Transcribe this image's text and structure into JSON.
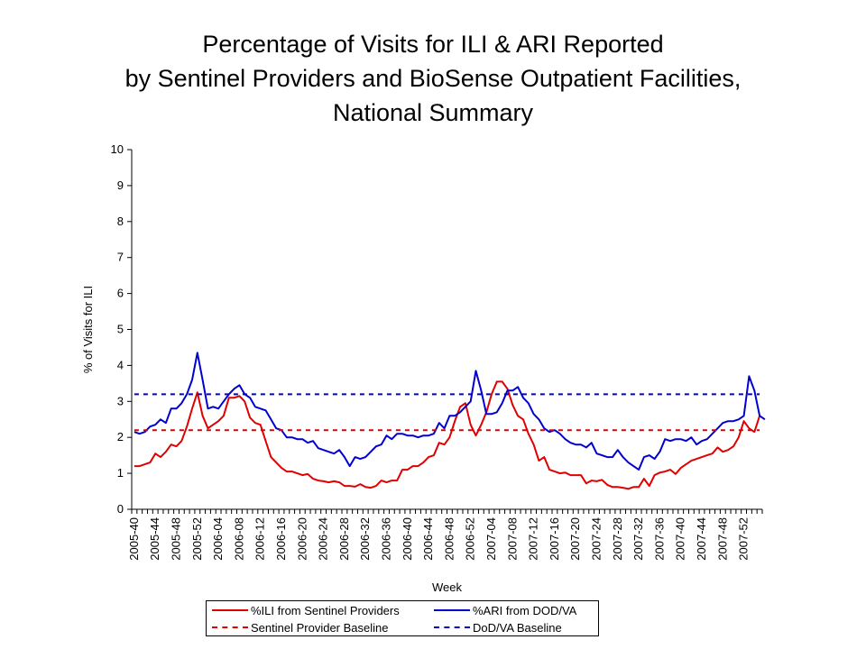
{
  "title_lines": [
    "Percentage of Visits for ILI & ARI Reported",
    "by Sentinel Providers and BioSense Outpatient Facilities,",
    "National Summary"
  ],
  "chart_data": {
    "type": "line",
    "title": "Percentage of Visits for ILI & ARI Reported by Sentinel Providers and BioSense Outpatient Facilities, National Summary",
    "xlabel": "Week",
    "ylabel": "% of Visits for ILI",
    "ylim": [
      0,
      10
    ],
    "yticks": [
      0,
      1,
      2,
      3,
      4,
      5,
      6,
      7,
      8,
      9,
      10
    ],
    "grid": false,
    "legend_position": "bottom",
    "x_tick_labels": [
      "2005-40",
      "2005-44",
      "2005-48",
      "2005-52",
      "2006-04",
      "2006-08",
      "2006-12",
      "2006-16",
      "2006-20",
      "2006-24",
      "2006-28",
      "2006-32",
      "2006-36",
      "2006-40",
      "2006-44",
      "2006-48",
      "2006-52",
      "2007-04",
      "2007-08",
      "2007-12",
      "2007-16",
      "2007-20",
      "2007-24",
      "2007-28",
      "2007-32",
      "2007-36",
      "2007-40",
      "2007-44",
      "2007-48",
      "2007-52"
    ],
    "x_tick_every_weeks": 4,
    "series": [
      {
        "name": "%ILI from Sentinel Providers",
        "color": "#e00000",
        "style": "solid",
        "values": [
          1.2,
          1.2,
          1.25,
          1.3,
          1.55,
          1.45,
          1.6,
          1.8,
          1.75,
          1.9,
          2.3,
          2.8,
          3.25,
          2.6,
          2.25,
          2.35,
          2.45,
          2.6,
          3.1,
          3.1,
          3.15,
          3.0,
          2.55,
          2.4,
          2.35,
          1.9,
          1.45,
          1.3,
          1.15,
          1.05,
          1.05,
          1.0,
          0.95,
          0.98,
          0.85,
          0.8,
          0.78,
          0.75,
          0.78,
          0.75,
          0.65,
          0.65,
          0.63,
          0.7,
          0.62,
          0.6,
          0.65,
          0.8,
          0.75,
          0.8,
          0.8,
          1.1,
          1.1,
          1.2,
          1.2,
          1.3,
          1.45,
          1.5,
          1.85,
          1.8,
          2.0,
          2.45,
          2.85,
          2.95,
          2.35,
          2.05,
          2.35,
          2.7,
          3.2,
          3.55,
          3.55,
          3.35,
          2.9,
          2.6,
          2.5,
          2.1,
          1.8,
          1.35,
          1.45,
          1.1,
          1.05,
          1.0,
          1.02,
          0.95,
          0.95,
          0.95,
          0.72,
          0.8,
          0.78,
          0.82,
          0.68,
          0.62,
          0.62,
          0.6,
          0.57,
          0.62,
          0.62,
          0.85,
          0.65,
          0.95,
          1.02,
          1.05,
          1.1,
          0.98,
          1.15,
          1.25,
          1.35,
          1.4,
          1.45,
          1.5,
          1.55,
          1.72,
          1.6,
          1.65,
          1.75,
          2.0,
          2.45,
          2.25,
          2.15,
          2.6
        ]
      },
      {
        "name": "%ARI from DOD/VA",
        "color": "#0000d0",
        "style": "solid",
        "values": [
          2.15,
          2.1,
          2.15,
          2.3,
          2.35,
          2.5,
          2.4,
          2.8,
          2.8,
          2.95,
          3.2,
          3.6,
          4.35,
          3.6,
          2.8,
          2.85,
          2.8,
          3.0,
          3.2,
          3.35,
          3.45,
          3.2,
          3.1,
          2.85,
          2.8,
          2.75,
          2.5,
          2.25,
          2.2,
          2.0,
          2.0,
          1.95,
          1.95,
          1.85,
          1.9,
          1.7,
          1.65,
          1.6,
          1.55,
          1.65,
          1.45,
          1.2,
          1.45,
          1.4,
          1.45,
          1.6,
          1.75,
          1.8,
          2.05,
          1.95,
          2.1,
          2.1,
          2.05,
          2.05,
          2.0,
          2.05,
          2.05,
          2.1,
          2.4,
          2.25,
          2.6,
          2.6,
          2.7,
          2.85,
          3.0,
          3.85,
          3.3,
          2.65,
          2.65,
          2.7,
          2.95,
          3.3,
          3.3,
          3.4,
          3.1,
          2.95,
          2.65,
          2.5,
          2.25,
          2.15,
          2.2,
          2.1,
          1.95,
          1.85,
          1.8,
          1.8,
          1.72,
          1.85,
          1.55,
          1.5,
          1.45,
          1.45,
          1.65,
          1.45,
          1.3,
          1.2,
          1.1,
          1.45,
          1.5,
          1.4,
          1.6,
          1.95,
          1.9,
          1.95,
          1.95,
          1.9,
          2.0,
          1.8,
          1.9,
          1.95,
          2.1,
          2.25,
          2.4,
          2.45,
          2.45,
          2.5,
          2.6,
          3.7,
          3.3,
          2.6,
          2.5
        ]
      },
      {
        "name": "Sentinel Provider Baseline",
        "color": "#e00000",
        "style": "dashed",
        "value": 2.2
      },
      {
        "name": "DoD/VA Baseline",
        "color": "#0000d0",
        "style": "dashed",
        "value": 3.2
      }
    ]
  },
  "legend": [
    {
      "label": "%ILI from Sentinel Providers",
      "color": "#e00000",
      "style": "solid"
    },
    {
      "label": "%ARI from DOD/VA",
      "color": "#0000d0",
      "style": "solid"
    },
    {
      "label": "Sentinel Provider Baseline",
      "color": "#e00000",
      "style": "dashed"
    },
    {
      "label": "DoD/VA Baseline",
      "color": "#0000d0",
      "style": "dashed"
    }
  ]
}
